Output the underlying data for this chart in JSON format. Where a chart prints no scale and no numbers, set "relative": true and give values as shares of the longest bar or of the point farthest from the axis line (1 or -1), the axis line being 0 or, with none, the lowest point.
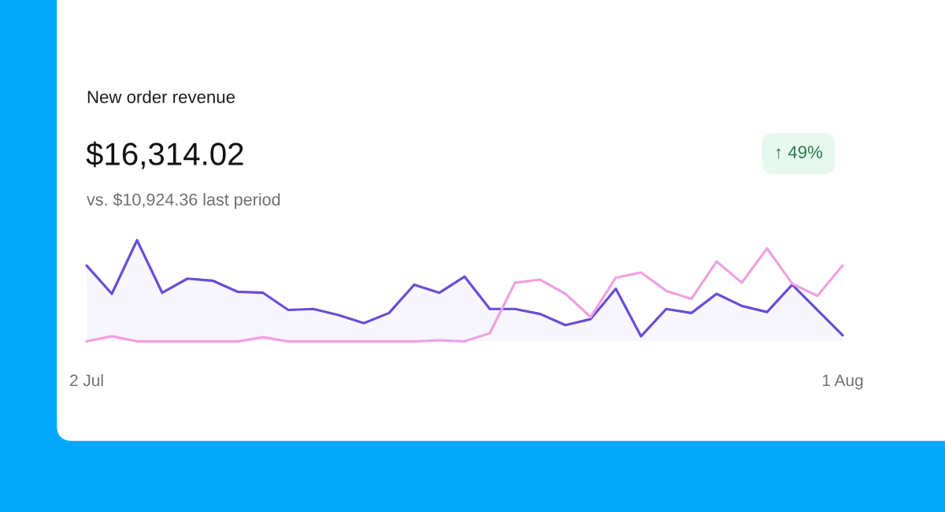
{
  "chart_data": {
    "type": "line",
    "title": "New order revenue",
    "subtitle": "$16,314.02",
    "annotations": [
      "vs. $10,924.36 last period",
      "↑ 49%"
    ],
    "categories": [
      "2 Jul",
      null,
      null,
      null,
      null,
      null,
      null,
      null,
      null,
      null,
      null,
      null,
      null,
      null,
      null,
      null,
      null,
      null,
      null,
      null,
      null,
      null,
      null,
      null,
      null,
      null,
      null,
      null,
      null,
      null,
      "1 Aug"
    ],
    "relative": true,
    "tick_labels": "x",
    "series": [
      {
        "type": "area",
        "color": "#6a4cd6",
        "values": [
          0.75,
          0.47,
          1.0,
          0.48,
          0.62,
          0.6,
          0.49,
          0.48,
          0.31,
          0.32,
          0.26,
          0.18,
          0.28,
          0.56,
          0.48,
          0.64,
          0.32,
          0.32,
          0.27,
          0.16,
          0.22,
          0.52,
          0.05,
          0.32,
          0.28,
          0.47,
          0.35,
          0.29,
          0.56,
          0.31,
          0.06
        ]
      },
      {
        "color": "#f0a0e0",
        "values": [
          0,
          0.05,
          0,
          0,
          0,
          0,
          0,
          0.04,
          0,
          0,
          0,
          0,
          0,
          0,
          0.01,
          0,
          0.08,
          0.58,
          0.61,
          0.47,
          0.24,
          0.63,
          0.68,
          0.5,
          0.42,
          0.79,
          0.58,
          0.92,
          0.57,
          0.45,
          0.75
        ]
      }
    ]
  }
}
